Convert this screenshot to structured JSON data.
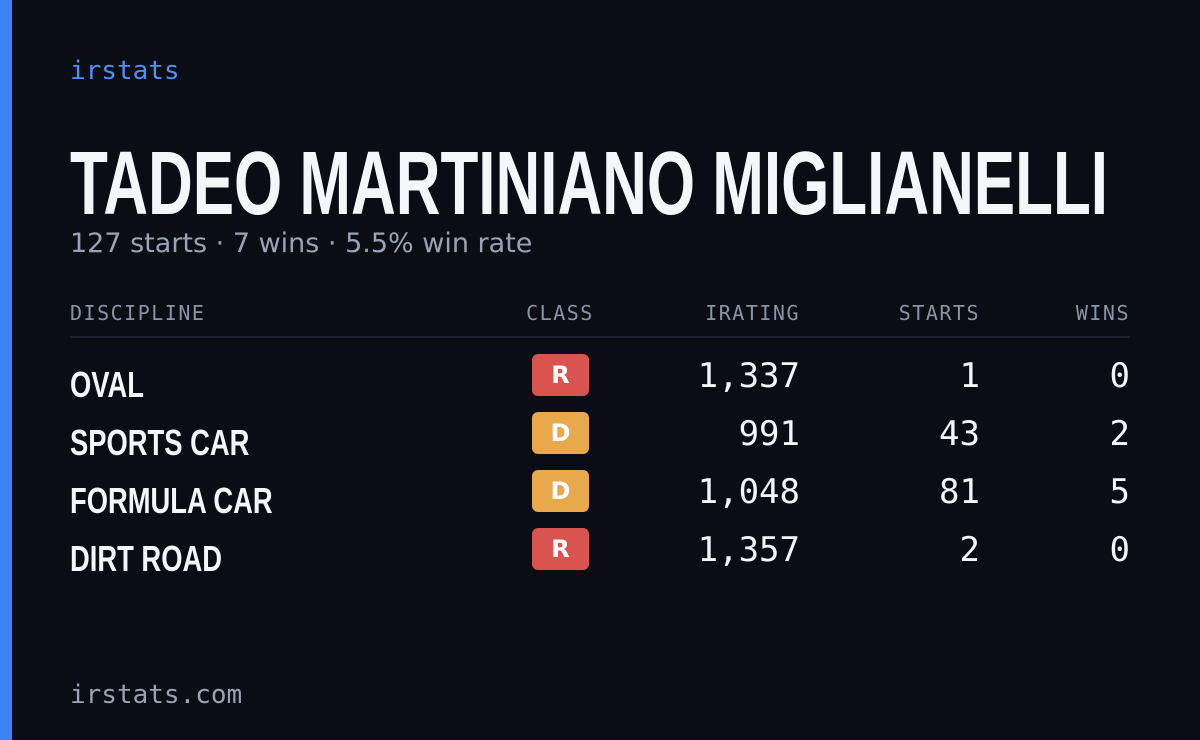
{
  "brand": "irstats",
  "name": "TADEO MARTINIANO MIGLIANELLI",
  "summary": "127 starts · 7 wins · 5.5% win rate",
  "table": {
    "headers": [
      "DISCIPLINE",
      "CLASS",
      "IRATING",
      "STARTS",
      "WINS"
    ],
    "rows": [
      [
        "OVAL",
        "R",
        "1,337",
        "1",
        "0"
      ],
      [
        "SPORTS CAR",
        "D",
        "991",
        "43",
        "2"
      ],
      [
        "FORMULA CAR",
        "D",
        "1,048",
        "81",
        "5"
      ],
      [
        "DIRT ROAD",
        "R",
        "1,357",
        "2",
        "0"
      ]
    ]
  },
  "class_colors": {
    "R": "#d9534f",
    "D": "#e8a84c"
  },
  "footer": "irstats.com"
}
